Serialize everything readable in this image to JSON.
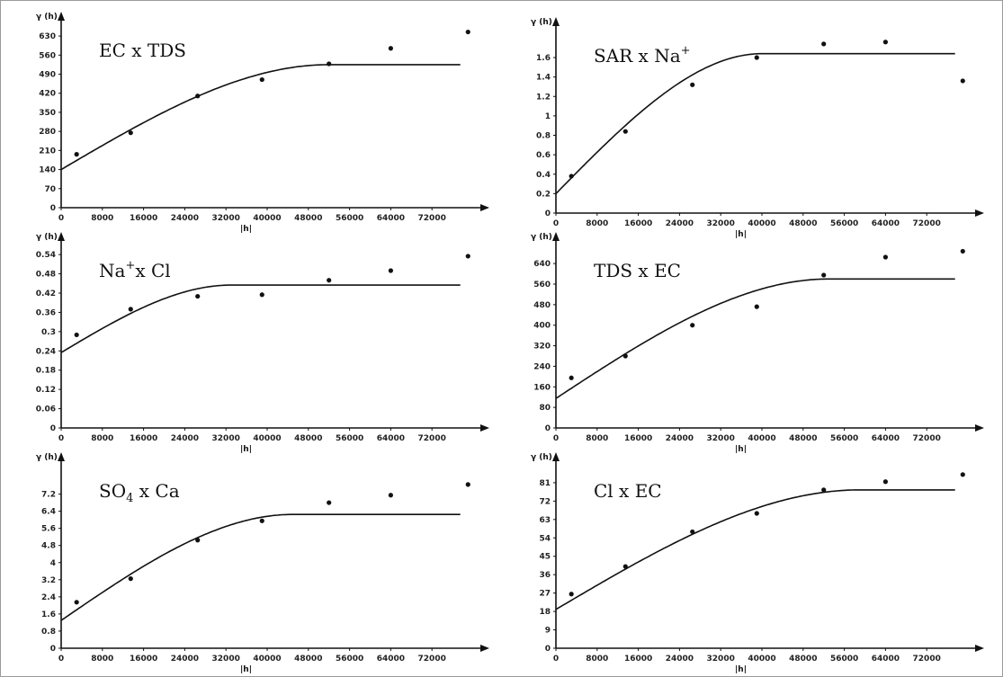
{
  "chart_data": [
    {
      "type": "scatter",
      "title": "EC x TDS",
      "ylabel": "γ (h)",
      "xlabel": "|h|",
      "xlim": [
        0,
        80000
      ],
      "ylim": [
        0,
        660
      ],
      "xticks": [
        "0",
        "8000",
        "16000",
        "24000",
        "32000",
        "40000",
        "48000",
        "56000",
        "64000",
        "72000"
      ],
      "yticks": [
        "0",
        "70",
        "140",
        "210",
        "280",
        "350",
        "420",
        "490",
        "560",
        "630"
      ],
      "x": [
        3000,
        13500,
        26500,
        39000,
        52000,
        64000,
        79000
      ],
      "y": [
        196,
        275,
        410,
        470,
        528,
        585,
        645
      ],
      "fit": {
        "nugget": 140,
        "sill": 525,
        "range": 52000
      }
    },
    {
      "type": "scatter",
      "title": "SAR x Na",
      "title_sup": "+",
      "ylabel": "γ (h)",
      "xlabel": "|h|",
      "xlim": [
        0,
        80000
      ],
      "ylim": [
        0,
        1.85
      ],
      "xticks": [
        "0",
        "8000",
        "16000",
        "24000",
        "32000",
        "40000",
        "48000",
        "56000",
        "64000",
        "72000"
      ],
      "yticks": [
        "0",
        "0.2",
        "0.4",
        "0.6",
        "0.8",
        "1",
        "1.2",
        "1.4",
        "1.6"
      ],
      "x": [
        3000,
        13500,
        26500,
        39000,
        52000,
        64000,
        79000
      ],
      "y": [
        0.38,
        0.84,
        1.32,
        1.6,
        1.74,
        1.76,
        1.36
      ],
      "fit": {
        "nugget": 0.2,
        "sill": 1.64,
        "range": 40000
      }
    },
    {
      "type": "scatter",
      "title": "Na",
      "title_sup": "+",
      "title_rest": "x Cl",
      "ylabel": "γ (h)",
      "xlabel": "|h|",
      "xlim": [
        0,
        80000
      ],
      "ylim": [
        0,
        0.56
      ],
      "xticks": [
        "0",
        "8000",
        "16000",
        "24000",
        "32000",
        "40000",
        "48000",
        "56000",
        "64000",
        "72000"
      ],
      "yticks": [
        "0",
        "0.06",
        "0.12",
        "0.18",
        "0.24",
        "0.3",
        "0.36",
        "0.42",
        "0.48",
        "0.54"
      ],
      "x": [
        3000,
        13500,
        26500,
        39000,
        52000,
        64000,
        79000
      ],
      "y": [
        0.29,
        0.37,
        0.41,
        0.415,
        0.46,
        0.49,
        0.535
      ],
      "fit": {
        "nugget": 0.235,
        "sill": 0.445,
        "range": 33000
      }
    },
    {
      "type": "scatter",
      "title": "TDS x EC",
      "ylabel": "γ (h)",
      "xlabel": "|h|",
      "xlim": [
        0,
        80000
      ],
      "ylim": [
        0,
        700
      ],
      "xticks": [
        "0",
        "8000",
        "16000",
        "24000",
        "32000",
        "40000",
        "48000",
        "56000",
        "64000",
        "72000"
      ],
      "yticks": [
        "0",
        "80",
        "160",
        "240",
        "320",
        "400",
        "480",
        "560",
        "640"
      ],
      "x": [
        3000,
        13500,
        26500,
        39000,
        52000,
        64000,
        79000
      ],
      "y": [
        195,
        280,
        400,
        472,
        595,
        665,
        688
      ],
      "fit": {
        "nugget": 115,
        "sill": 580,
        "range": 53000
      }
    },
    {
      "type": "scatter",
      "title": "SO",
      "title_sub": "4",
      "title_rest": " x Ca",
      "ylabel": "γ (h)",
      "xlabel": "|h|",
      "xlim": [
        0,
        80000
      ],
      "ylim": [
        0,
        8.4
      ],
      "xticks": [
        "0",
        "8000",
        "16000",
        "24000",
        "32000",
        "40000",
        "48000",
        "56000",
        "64000",
        "72000"
      ],
      "yticks": [
        "0",
        "0.8",
        "1.6",
        "2.4",
        "3.2",
        "4",
        "4.8",
        "5.6",
        "6.4",
        "7.2"
      ],
      "x": [
        3000,
        13500,
        26500,
        39000,
        52000,
        64000,
        79000
      ],
      "y": [
        2.15,
        3.25,
        5.05,
        5.95,
        6.8,
        7.15,
        7.65
      ],
      "fit": {
        "nugget": 1.3,
        "sill": 6.25,
        "range": 45000
      }
    },
    {
      "type": "scatter",
      "title": "Cl x EC",
      "ylabel": "γ (h)",
      "xlabel": "|h|",
      "xlim": [
        0,
        80000
      ],
      "ylim": [
        0,
        88
      ],
      "xticks": [
        "0",
        "8000",
        "16000",
        "24000",
        "32000",
        "40000",
        "48000",
        "56000",
        "64000",
        "72000"
      ],
      "yticks": [
        "0",
        "9",
        "18",
        "27",
        "36",
        "45",
        "54",
        "63",
        "72",
        "81"
      ],
      "x": [
        3000,
        13500,
        26500,
        39000,
        52000,
        64000,
        79000
      ],
      "y": [
        26.5,
        40,
        57,
        66,
        77.5,
        81.5,
        85
      ],
      "fit": {
        "nugget": 19,
        "sill": 77.5,
        "range": 59000
      }
    }
  ]
}
